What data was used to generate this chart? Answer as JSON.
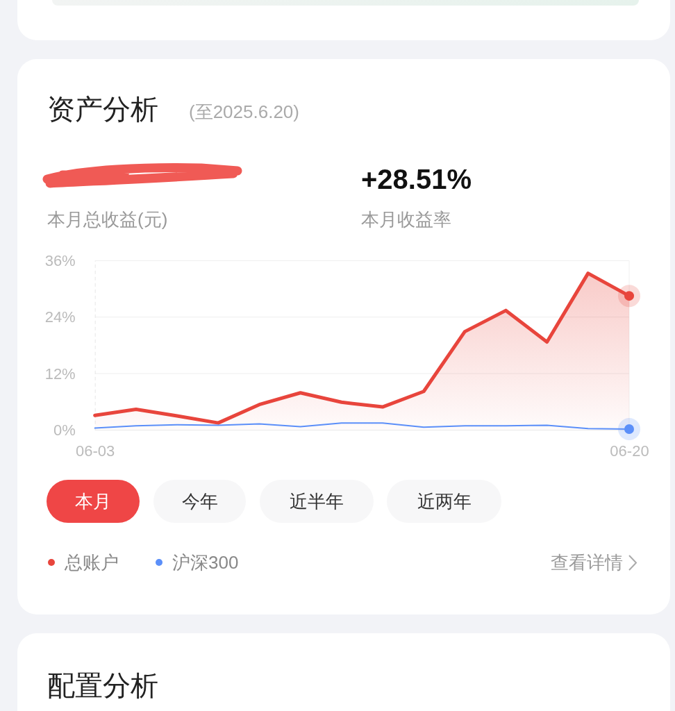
{
  "chart_data": {
    "type": "line",
    "title": "资产分析",
    "subtitle": "(至2025.6.20)",
    "categories": [
      "06-03",
      null,
      null,
      null,
      null,
      null,
      null,
      null,
      null,
      null,
      null,
      null,
      null,
      "06-20"
    ],
    "series": [
      {
        "name": "总账户",
        "type": "area",
        "color": "#e8453c",
        "values": [
          3.1,
          4.4,
          3.0,
          1.5,
          5.4,
          7.9,
          5.9,
          4.9,
          8.2,
          20.9,
          25.4,
          18.7,
          33.3,
          28.5
        ]
      },
      {
        "name": "沪深300",
        "type": "line",
        "color": "#5b8ff9",
        "values": [
          0.4,
          0.9,
          1.1,
          1.0,
          1.3,
          0.7,
          1.5,
          1.5,
          0.6,
          0.9,
          0.9,
          1.0,
          0.3,
          0.2
        ]
      }
    ],
    "ylim": [
      0,
      36
    ],
    "yticks": [
      {
        "value": 0,
        "label": "0%"
      },
      {
        "value": 12,
        "label": "12%"
      },
      {
        "value": 24,
        "label": "24%"
      },
      {
        "value": 36,
        "label": "36%"
      }
    ],
    "grid": "y",
    "legend": "bottom left",
    "annotations": [
      "本月总收益(元)",
      "+28.51%",
      "本月收益率",
      "本月",
      "今年",
      "近半年",
      "近两年",
      "查看详情",
      "配置分析"
    ]
  }
}
